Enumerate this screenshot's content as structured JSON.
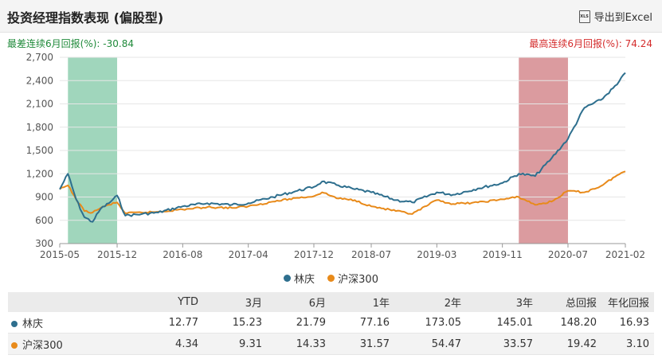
{
  "header": {
    "title": "投资经理指数表现 (偏股型)",
    "export_label": "导出到Excel",
    "export_icon": "excel-icon",
    "export_icon_text": "XLS"
  },
  "stats": {
    "worst_label": "最差连续6月回报(%):",
    "worst_value": "-30.84",
    "best_label": "最高连续6月回报(%):",
    "best_value": "74.24"
  },
  "colors": {
    "series1": "#2e6f8e",
    "series2": "#e88a1a",
    "worst_band": "#8fcfb0",
    "best_band": "#d58a8e"
  },
  "chart_data": {
    "type": "line",
    "y_ticks": [
      "2,700",
      "2,400",
      "2,100",
      "1,800",
      "1,500",
      "1,200",
      "900",
      "600",
      "300"
    ],
    "ylim": [
      300,
      2700
    ],
    "x_ticks": [
      "2015-05",
      "2015-12",
      "2016-08",
      "2017-04",
      "2017-12",
      "2018-07",
      "2019-03",
      "2019-11",
      "2020-07",
      "2021-02"
    ],
    "x_range": [
      "2015-05",
      "2021-02"
    ],
    "bands": [
      {
        "kind": "worst",
        "from": "2015-06",
        "to": "2015-12"
      },
      {
        "kind": "best",
        "from": "2020-01",
        "to": "2020-07"
      }
    ],
    "series": [
      {
        "name": "林庆",
        "points": [
          [
            "2015-05",
            1000
          ],
          [
            "2015-06",
            1200
          ],
          [
            "2015-07",
            870
          ],
          [
            "2015-08",
            640
          ],
          [
            "2015-09",
            580
          ],
          [
            "2015-10",
            750
          ],
          [
            "2015-11",
            820
          ],
          [
            "2015-12",
            920
          ],
          [
            "2016-01",
            660
          ],
          [
            "2016-03",
            680
          ],
          [
            "2016-05",
            700
          ],
          [
            "2016-08",
            780
          ],
          [
            "2016-11",
            820
          ],
          [
            "2017-02",
            800
          ],
          [
            "2017-04",
            820
          ],
          [
            "2017-07",
            900
          ],
          [
            "2017-10",
            980
          ],
          [
            "2017-12",
            1030
          ],
          [
            "2018-01",
            1100
          ],
          [
            "2018-03",
            1050
          ],
          [
            "2018-05",
            1000
          ],
          [
            "2018-07",
            960
          ],
          [
            "2018-10",
            860
          ],
          [
            "2018-12",
            830
          ],
          [
            "2019-03",
            960
          ],
          [
            "2019-05",
            930
          ],
          [
            "2019-08",
            1010
          ],
          [
            "2019-11",
            1080
          ],
          [
            "2020-01",
            1200
          ],
          [
            "2020-03",
            1170
          ],
          [
            "2020-05",
            1400
          ],
          [
            "2020-07",
            1650
          ],
          [
            "2020-09",
            2050
          ],
          [
            "2020-11",
            2150
          ],
          [
            "2021-01",
            2350
          ],
          [
            "2021-02",
            2500
          ]
        ]
      },
      {
        "name": "沪深300",
        "points": [
          [
            "2015-05",
            1000
          ],
          [
            "2015-06",
            1050
          ],
          [
            "2015-07",
            870
          ],
          [
            "2015-08",
            720
          ],
          [
            "2015-09",
            700
          ],
          [
            "2015-10",
            760
          ],
          [
            "2015-11",
            800
          ],
          [
            "2015-12",
            830
          ],
          [
            "2016-01",
            690
          ],
          [
            "2016-03",
            700
          ],
          [
            "2016-05",
            710
          ],
          [
            "2016-08",
            740
          ],
          [
            "2016-11",
            770
          ],
          [
            "2017-02",
            760
          ],
          [
            "2017-04",
            780
          ],
          [
            "2017-07",
            840
          ],
          [
            "2017-10",
            890
          ],
          [
            "2017-12",
            910
          ],
          [
            "2018-01",
            960
          ],
          [
            "2018-03",
            880
          ],
          [
            "2018-05",
            860
          ],
          [
            "2018-07",
            780
          ],
          [
            "2018-10",
            720
          ],
          [
            "2018-12",
            680
          ],
          [
            "2019-03",
            860
          ],
          [
            "2019-05",
            810
          ],
          [
            "2019-08",
            830
          ],
          [
            "2019-11",
            870
          ],
          [
            "2020-01",
            900
          ],
          [
            "2020-03",
            800
          ],
          [
            "2020-05",
            840
          ],
          [
            "2020-07",
            980
          ],
          [
            "2020-09",
            960
          ],
          [
            "2020-11",
            1040
          ],
          [
            "2021-01",
            1180
          ],
          [
            "2021-02",
            1230
          ]
        ]
      }
    ]
  },
  "legend": [
    {
      "label": "林庆"
    },
    {
      "label": "沪深300"
    }
  ],
  "table": {
    "columns": [
      "",
      "YTD",
      "3月",
      "6月",
      "1年",
      "2年",
      "3年",
      "总回报",
      "年化回报"
    ],
    "rows": [
      {
        "name": "林庆",
        "values": [
          "12.77",
          "15.23",
          "21.79",
          "77.16",
          "173.05",
          "145.01",
          "148.20",
          "16.93"
        ]
      },
      {
        "name": "沪深300",
        "values": [
          "4.34",
          "9.31",
          "14.33",
          "31.57",
          "54.47",
          "33.57",
          "19.42",
          "3.10"
        ]
      }
    ]
  }
}
